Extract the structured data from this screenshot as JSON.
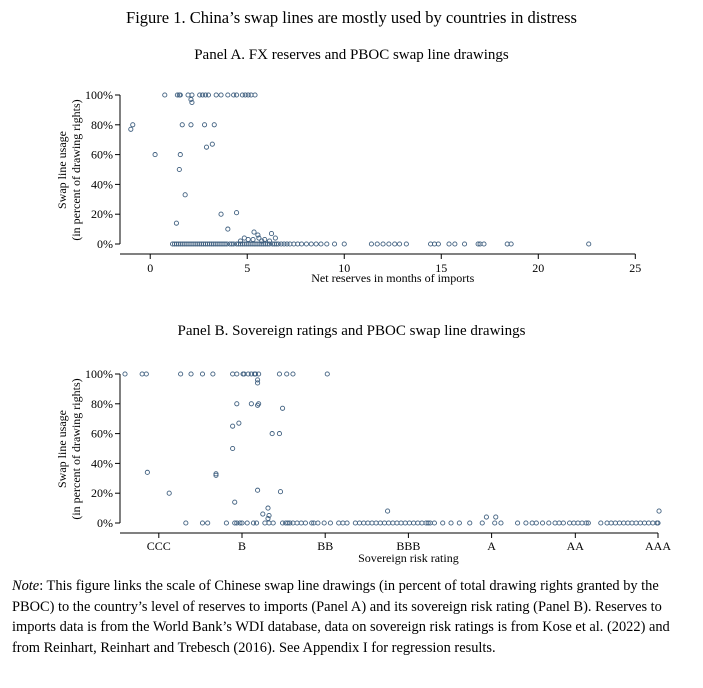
{
  "figure_title": "Figure 1. China’s swap lines are mostly used by countries in distress",
  "colors": {
    "marker": "#3f5f7f",
    "axis": "#000000"
  },
  "note": {
    "label": "Note",
    "text": ": This figure links the scale of Chinese swap line drawings (in percent of total drawing rights granted by the PBOC) to the country’s level of reserves to imports (Panel A) and its sovereign risk rating (Panel B). Reserves to imports data is from the World Bank’s WDI database, data on sovereign risk ratings is from Kose et al. (2022) and from Reinhart, Reinhart and Trebesch (2016). See Appendix I for regression results."
  },
  "chart_data": [
    {
      "type": "scatter",
      "title": "Panel A. FX reserves and PBOC swap line drawings",
      "xlabel": "Net reserves in months of imports",
      "ylabel": [
        "Swap line usage",
        "(in percent of drawing rights)"
      ],
      "xlim": [
        -1.3,
        25.5
      ],
      "ylim": [
        0,
        100
      ],
      "x_ticks": [
        0,
        5,
        10,
        15,
        20,
        25
      ],
      "x_tick_labels": [
        "0",
        "5",
        "10",
        "15",
        "20",
        "25"
      ],
      "y_ticks": [
        0,
        20,
        40,
        60,
        80,
        100
      ],
      "y_tick_labels": [
        "0%",
        "20%",
        "40%",
        "60%",
        "80%",
        "100%"
      ],
      "grid": false,
      "legend": false,
      "points": [
        [
          0.75,
          100
        ],
        [
          1.4,
          100
        ],
        [
          1.5,
          100
        ],
        [
          1.55,
          100
        ],
        [
          1.95,
          100
        ],
        [
          2.15,
          100
        ],
        [
          2.55,
          100
        ],
        [
          2.7,
          100
        ],
        [
          2.85,
          100
        ],
        [
          3.0,
          100
        ],
        [
          3.4,
          100
        ],
        [
          3.65,
          100
        ],
        [
          4.0,
          100
        ],
        [
          4.3,
          100
        ],
        [
          4.45,
          100
        ],
        [
          4.75,
          100
        ],
        [
          4.9,
          100
        ],
        [
          5.05,
          100
        ],
        [
          5.2,
          100
        ],
        [
          5.4,
          100
        ],
        [
          2.1,
          97
        ],
        [
          2.15,
          95
        ],
        [
          -0.9,
          80
        ],
        [
          1.65,
          80
        ],
        [
          2.1,
          80
        ],
        [
          2.8,
          80
        ],
        [
          3.3,
          80
        ],
        [
          -1.0,
          77
        ],
        [
          3.2,
          67
        ],
        [
          2.9,
          65
        ],
        [
          0.25,
          60
        ],
        [
          1.55,
          60
        ],
        [
          1.5,
          50
        ],
        [
          1.8,
          33
        ],
        [
          3.65,
          20
        ],
        [
          4.45,
          21
        ],
        [
          1.35,
          14
        ],
        [
          4.0,
          10
        ],
        [
          5.35,
          8
        ],
        [
          5.55,
          6
        ],
        [
          6.25,
          7
        ],
        [
          4.85,
          4
        ],
        [
          5.05,
          3
        ],
        [
          5.3,
          3
        ],
        [
          5.6,
          4
        ],
        [
          5.9,
          3
        ],
        [
          6.15,
          2
        ],
        [
          6.45,
          4
        ],
        [
          4.65,
          2
        ],
        [
          5.75,
          2
        ],
        [
          1.15,
          0
        ],
        [
          1.25,
          0
        ],
        [
          1.35,
          0
        ],
        [
          1.45,
          0
        ],
        [
          1.55,
          0
        ],
        [
          1.65,
          0
        ],
        [
          1.75,
          0
        ],
        [
          1.85,
          0
        ],
        [
          1.95,
          0
        ],
        [
          2.05,
          0
        ],
        [
          2.15,
          0
        ],
        [
          2.25,
          0
        ],
        [
          2.35,
          0
        ],
        [
          2.45,
          0
        ],
        [
          2.55,
          0
        ],
        [
          2.65,
          0
        ],
        [
          2.75,
          0
        ],
        [
          2.85,
          0
        ],
        [
          2.95,
          0
        ],
        [
          3.05,
          0
        ],
        [
          3.15,
          0
        ],
        [
          3.25,
          0
        ],
        [
          3.35,
          0
        ],
        [
          3.45,
          0
        ],
        [
          3.55,
          0
        ],
        [
          3.65,
          0
        ],
        [
          3.75,
          0
        ],
        [
          3.85,
          0
        ],
        [
          3.95,
          0
        ],
        [
          4.1,
          0
        ],
        [
          4.2,
          0
        ],
        [
          4.3,
          0
        ],
        [
          4.45,
          0
        ],
        [
          4.55,
          0
        ],
        [
          4.65,
          0
        ],
        [
          4.75,
          0
        ],
        [
          4.85,
          0
        ],
        [
          4.95,
          0
        ],
        [
          5.05,
          0
        ],
        [
          5.15,
          0
        ],
        [
          5.25,
          0
        ],
        [
          5.35,
          0
        ],
        [
          5.45,
          0
        ],
        [
          5.55,
          0
        ],
        [
          5.65,
          0
        ],
        [
          5.75,
          0
        ],
        [
          5.85,
          0
        ],
        [
          5.95,
          0
        ],
        [
          6.05,
          0
        ],
        [
          6.15,
          0
        ],
        [
          6.3,
          0
        ],
        [
          6.4,
          0
        ],
        [
          6.5,
          0
        ],
        [
          6.6,
          0
        ],
        [
          6.75,
          0
        ],
        [
          6.9,
          0
        ],
        [
          7.05,
          0
        ],
        [
          7.2,
          0
        ],
        [
          7.4,
          0
        ],
        [
          7.6,
          0
        ],
        [
          7.8,
          0
        ],
        [
          8.05,
          0
        ],
        [
          8.3,
          0
        ],
        [
          8.55,
          0
        ],
        [
          8.8,
          0
        ],
        [
          9.1,
          0
        ],
        [
          9.5,
          0
        ],
        [
          10.0,
          0
        ],
        [
          11.4,
          0
        ],
        [
          11.7,
          0
        ],
        [
          12.0,
          0
        ],
        [
          12.3,
          0
        ],
        [
          12.6,
          0
        ],
        [
          12.85,
          0
        ],
        [
          13.2,
          0
        ],
        [
          14.45,
          0
        ],
        [
          14.65,
          0
        ],
        [
          14.85,
          0
        ],
        [
          15.4,
          0
        ],
        [
          15.7,
          0
        ],
        [
          16.2,
          0
        ],
        [
          16.9,
          0
        ],
        [
          17.0,
          0
        ],
        [
          17.2,
          0
        ],
        [
          18.4,
          0
        ],
        [
          18.6,
          0
        ],
        [
          22.6,
          0
        ]
      ]
    },
    {
      "type": "scatter",
      "title": "Panel B. Sovereign ratings and PBOC swap line drawings",
      "xlabel": "Sovereign risk rating",
      "ylabel": [
        "Swap line usage",
        "(in percent of drawing rights)"
      ],
      "xlim": [
        0,
        100
      ],
      "ylim": [
        0,
        100
      ],
      "x_ticks": [
        6.5,
        22.5,
        38.5,
        54.5,
        70.5,
        86.6,
        102.5
      ],
      "x_tick_labels": [
        "CCC",
        "B",
        "BB",
        "BBB",
        "A",
        "AA",
        "AAA"
      ],
      "y_ticks": [
        0,
        20,
        40,
        60,
        80,
        100
      ],
      "y_tick_labels": [
        "0%",
        "20%",
        "40%",
        "60%",
        "80%",
        "100%"
      ],
      "grid": false,
      "legend": false,
      "points": [
        [
          0,
          100
        ],
        [
          3.3,
          100
        ],
        [
          4.1,
          100
        ],
        [
          10.7,
          100
        ],
        [
          12.7,
          100
        ],
        [
          14.9,
          100
        ],
        [
          16.9,
          100
        ],
        [
          20.7,
          100
        ],
        [
          21.5,
          100
        ],
        [
          22.7,
          100
        ],
        [
          22.9,
          100
        ],
        [
          23.7,
          100
        ],
        [
          24.3,
          100
        ],
        [
          24.9,
          100
        ],
        [
          25.1,
          100
        ],
        [
          25.7,
          100
        ],
        [
          29.7,
          100
        ],
        [
          31.1,
          100
        ],
        [
          32.3,
          100
        ],
        [
          38.9,
          100
        ],
        [
          25.5,
          96
        ],
        [
          25.5,
          94
        ],
        [
          21.5,
          80
        ],
        [
          24.3,
          80
        ],
        [
          25.7,
          80
        ],
        [
          25.5,
          79
        ],
        [
          30.3,
          77
        ],
        [
          21.9,
          67
        ],
        [
          20.7,
          65
        ],
        [
          28.3,
          60
        ],
        [
          29.7,
          60
        ],
        [
          20.7,
          50
        ],
        [
          17.5,
          33
        ],
        [
          17.5,
          32
        ],
        [
          4.3,
          34
        ],
        [
          8.5,
          20
        ],
        [
          29.9,
          21
        ],
        [
          21.1,
          14
        ],
        [
          25.5,
          22
        ],
        [
          27.5,
          10
        ],
        [
          27.7,
          5
        ],
        [
          27.5,
          3
        ],
        [
          26.5,
          6
        ],
        [
          50.5,
          8
        ],
        [
          69.5,
          4
        ],
        [
          71.3,
          4
        ],
        [
          102.7,
          8
        ],
        [
          11.7,
          0
        ],
        [
          14.9,
          0
        ],
        [
          15.9,
          0
        ],
        [
          19.5,
          0
        ],
        [
          21.1,
          0
        ],
        [
          21.5,
          0
        ],
        [
          22.1,
          0
        ],
        [
          22.5,
          0
        ],
        [
          23.5,
          0
        ],
        [
          24.7,
          0
        ],
        [
          25.3,
          0
        ],
        [
          26.9,
          0
        ],
        [
          27.7,
          0
        ],
        [
          28.5,
          0
        ],
        [
          30.3,
          0
        ],
        [
          30.9,
          0
        ],
        [
          31.3,
          0
        ],
        [
          31.7,
          0
        ],
        [
          32.3,
          0
        ],
        [
          33.1,
          0
        ],
        [
          33.9,
          0
        ],
        [
          34.7,
          0
        ],
        [
          35.9,
          0
        ],
        [
          36.3,
          0
        ],
        [
          37.1,
          0
        ],
        [
          38.3,
          0
        ],
        [
          39.5,
          0
        ],
        [
          41.1,
          0
        ],
        [
          41.9,
          0
        ],
        [
          42.7,
          0
        ],
        [
          44.3,
          0
        ],
        [
          45.1,
          0
        ],
        [
          45.9,
          0
        ],
        [
          46.7,
          0
        ],
        [
          47.5,
          0
        ],
        [
          48.3,
          0
        ],
        [
          49.1,
          0
        ],
        [
          49.9,
          0
        ],
        [
          50.7,
          0
        ],
        [
          51.5,
          0
        ],
        [
          52.3,
          0
        ],
        [
          53.1,
          0
        ],
        [
          53.9,
          0
        ],
        [
          54.7,
          0
        ],
        [
          55.5,
          0
        ],
        [
          56.3,
          0
        ],
        [
          57.1,
          0
        ],
        [
          57.9,
          0
        ],
        [
          58.3,
          0
        ],
        [
          58.7,
          0
        ],
        [
          59.5,
          0
        ],
        [
          61.1,
          0
        ],
        [
          62.7,
          0
        ],
        [
          64.3,
          0
        ],
        [
          66.3,
          0
        ],
        [
          68.7,
          0
        ],
        [
          71.1,
          0
        ],
        [
          72.3,
          0
        ],
        [
          75.5,
          0
        ],
        [
          77.1,
          0
        ],
        [
          78.3,
          0
        ],
        [
          79.1,
          0
        ],
        [
          80.3,
          0
        ],
        [
          81.5,
          0
        ],
        [
          82.7,
          0
        ],
        [
          83.5,
          0
        ],
        [
          84.3,
          0
        ],
        [
          85.5,
          0
        ],
        [
          86.3,
          0
        ],
        [
          87.1,
          0
        ],
        [
          87.9,
          0
        ],
        [
          88.7,
          0
        ],
        [
          89.1,
          0
        ],
        [
          91.5,
          0
        ],
        [
          92.7,
          0
        ],
        [
          93.5,
          0
        ],
        [
          94.3,
          0
        ],
        [
          95.1,
          0
        ],
        [
          95.9,
          0
        ],
        [
          96.7,
          0
        ],
        [
          97.5,
          0
        ],
        [
          98.3,
          0
        ],
        [
          99.1,
          0
        ],
        [
          99.9,
          0
        ],
        [
          100.7,
          0
        ],
        [
          101.5,
          0
        ],
        [
          102.3,
          0
        ],
        [
          102.5,
          0
        ]
      ]
    }
  ]
}
